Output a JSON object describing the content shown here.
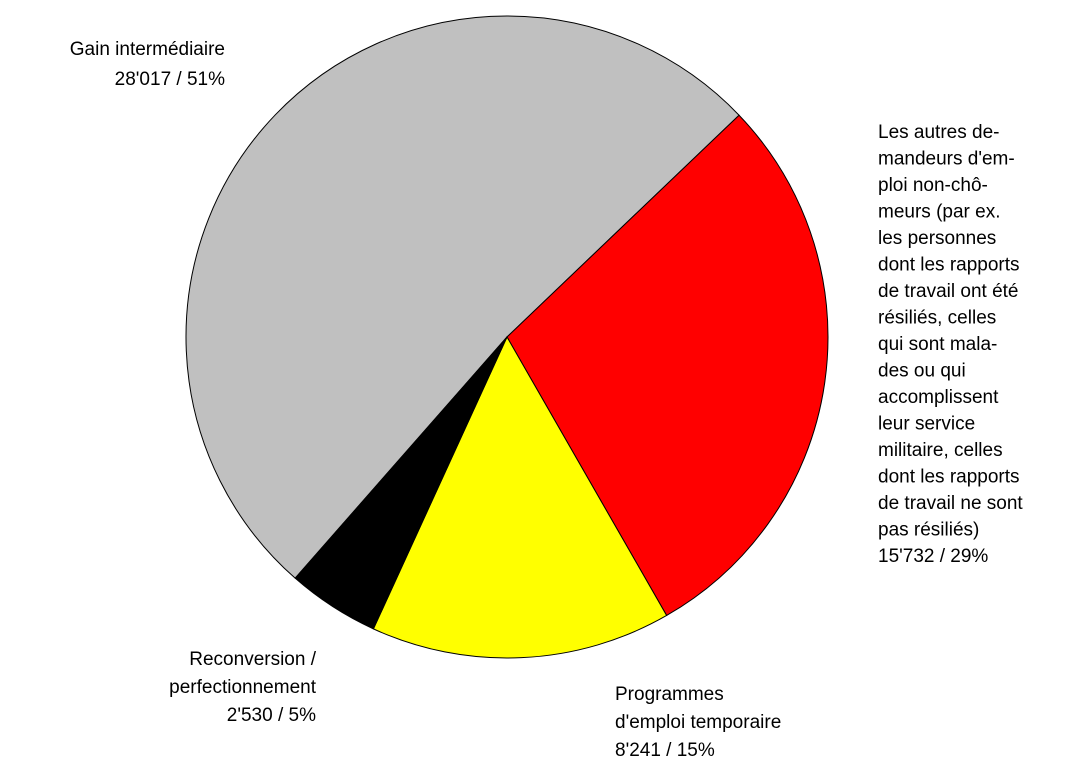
{
  "chart_data": {
    "type": "pie",
    "categories": [
      [
        "Gain intermédiaire"
      ],
      [
        "Les autres de-",
        "mandeurs d'em-",
        "ploi non-chô-",
        "meurs (par ex.",
        "les personnes",
        "dont les rapports",
        "de travail ont été",
        "résiliés, celles",
        "qui sont mala-",
        "des ou qui",
        "accomplissent",
        "leur service",
        "militaire, celles",
        "dont les rapports",
        "de travail ne sont",
        "pas résiliés)"
      ],
      [
        "Programmes",
        "d'emploi temporaire"
      ],
      [
        "Reconversion /",
        "perfectionnement"
      ]
    ],
    "values": [
      28017,
      15732,
      8241,
      2530
    ],
    "value_labels": [
      "28'017 / 51%",
      "15'732 / 29%",
      "8'241 / 15%",
      "2'530 / 5%"
    ],
    "colors": [
      "#c0c0c0",
      "#ff0000",
      "#ffff00",
      "#000000"
    ]
  }
}
